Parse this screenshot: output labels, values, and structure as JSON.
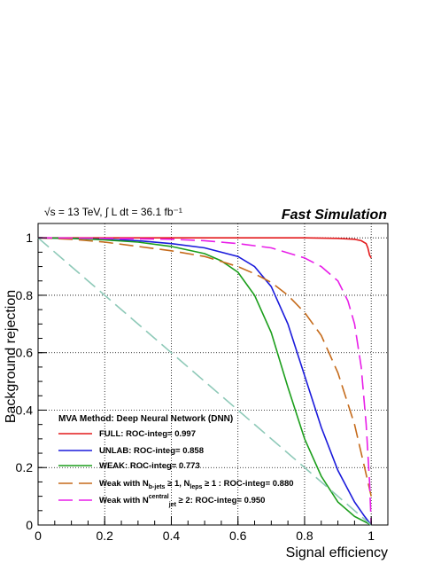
{
  "header": {
    "energy_label": "√s = 13 TeV, ∫ L dt = 36.1 fb⁻¹",
    "simulation_label": "Fast Simulation"
  },
  "chart_data": {
    "type": "line",
    "xlabel": "Signal efficiency",
    "ylabel": "Background rejection",
    "xlim": [
      0,
      1.05
    ],
    "ylim": [
      0,
      1.05
    ],
    "x_ticks": [
      "0",
      "0.2",
      "0.4",
      "0.6",
      "0.8",
      "1"
    ],
    "y_ticks": [
      "0",
      "0.2",
      "0.4",
      "0.6",
      "0.8",
      "1"
    ],
    "x_tick_values": [
      0,
      0.2,
      0.4,
      0.6,
      0.8,
      1
    ],
    "y_tick_values": [
      0,
      0.2,
      0.4,
      0.6,
      0.8,
      1
    ],
    "grid": true,
    "legend": {
      "placement": "bottom-left",
      "header": "MVA Method:  Deep Neural Network (DNN)"
    },
    "series": [
      {
        "name": "FULL: ROC-integ= 0.997",
        "color": "#e31a1c",
        "dash": "solid",
        "points": [
          [
            0,
            1
          ],
          [
            0.2,
            1
          ],
          [
            0.4,
            1
          ],
          [
            0.6,
            1
          ],
          [
            0.8,
            1
          ],
          [
            0.9,
            0.998
          ],
          [
            0.95,
            0.995
          ],
          [
            0.97,
            0.99
          ],
          [
            0.985,
            0.98
          ],
          [
            0.99,
            0.965
          ],
          [
            0.995,
            0.94
          ],
          [
            1,
            0.93
          ]
        ]
      },
      {
        "name": "UNLAB: ROC-integ= 0.858",
        "color": "#1a1adb",
        "dash": "solid",
        "points": [
          [
            0,
            1
          ],
          [
            0.1,
            0.998
          ],
          [
            0.2,
            0.995
          ],
          [
            0.3,
            0.99
          ],
          [
            0.4,
            0.98
          ],
          [
            0.5,
            0.965
          ],
          [
            0.6,
            0.935
          ],
          [
            0.65,
            0.9
          ],
          [
            0.7,
            0.83
          ],
          [
            0.75,
            0.7
          ],
          [
            0.8,
            0.52
          ],
          [
            0.85,
            0.34
          ],
          [
            0.9,
            0.19
          ],
          [
            0.95,
            0.08
          ],
          [
            0.98,
            0.03
          ],
          [
            1,
            0
          ]
        ]
      },
      {
        "name": "WEAK: ROC-integ= 0.773",
        "color": "#1b9e1b",
        "dash": "solid",
        "points": [
          [
            0,
            1
          ],
          [
            0.1,
            0.998
          ],
          [
            0.2,
            0.993
          ],
          [
            0.3,
            0.985
          ],
          [
            0.4,
            0.97
          ],
          [
            0.5,
            0.945
          ],
          [
            0.55,
            0.92
          ],
          [
            0.6,
            0.88
          ],
          [
            0.65,
            0.8
          ],
          [
            0.7,
            0.67
          ],
          [
            0.75,
            0.48
          ],
          [
            0.8,
            0.3
          ],
          [
            0.85,
            0.17
          ],
          [
            0.9,
            0.08
          ],
          [
            0.95,
            0.03
          ],
          [
            1,
            0
          ]
        ]
      },
      {
        "name": "Weak with N_b-jets ≥ 1, N_leps ≥ 1 : ROC-integ= 0.880",
        "color": "#c56a1a",
        "dash": "long-dash",
        "points": [
          [
            0,
            1
          ],
          [
            0.1,
            0.995
          ],
          [
            0.2,
            0.985
          ],
          [
            0.3,
            0.97
          ],
          [
            0.4,
            0.955
          ],
          [
            0.5,
            0.935
          ],
          [
            0.6,
            0.9
          ],
          [
            0.65,
            0.875
          ],
          [
            0.7,
            0.845
          ],
          [
            0.75,
            0.8
          ],
          [
            0.8,
            0.74
          ],
          [
            0.85,
            0.66
          ],
          [
            0.9,
            0.53
          ],
          [
            0.95,
            0.35
          ],
          [
            0.98,
            0.2
          ],
          [
            1,
            0.1
          ]
        ]
      },
      {
        "name": "Weak with N_jet^central ≥ 2: ROC-integ= 0.950",
        "color": "#e81ee8",
        "dash": "long-dash",
        "points": [
          [
            0,
            1
          ],
          [
            0.2,
            0.998
          ],
          [
            0.4,
            0.995
          ],
          [
            0.5,
            0.99
          ],
          [
            0.6,
            0.98
          ],
          [
            0.7,
            0.965
          ],
          [
            0.8,
            0.93
          ],
          [
            0.85,
            0.9
          ],
          [
            0.9,
            0.85
          ],
          [
            0.93,
            0.78
          ],
          [
            0.95,
            0.7
          ],
          [
            0.97,
            0.55
          ],
          [
            0.985,
            0.35
          ],
          [
            0.995,
            0.15
          ],
          [
            1,
            0
          ]
        ]
      },
      {
        "name": "",
        "color": "#8ec9b8",
        "dash": "long-dash",
        "points": [
          [
            0,
            1
          ],
          [
            1,
            0
          ]
        ]
      }
    ]
  },
  "legend_entries": [
    {
      "prefix": "FULL: ROC-integ= 0.997"
    },
    {
      "prefix": "UNLAB: ROC-integ= 0.858"
    },
    {
      "prefix": "WEAK: ROC-integ= 0.773"
    },
    {
      "prefix": "Weak with N",
      "sub1": "b-jets",
      "mid": " ≥ 1, N",
      "sub2": "leps",
      "suffix": " ≥ 1 : ROC-integ= 0.880"
    },
    {
      "prefix": "Weak with N",
      "sup1": "central",
      "sub1": "jet",
      "suffix": " ≥ 2: ROC-integ= 0.950"
    }
  ]
}
